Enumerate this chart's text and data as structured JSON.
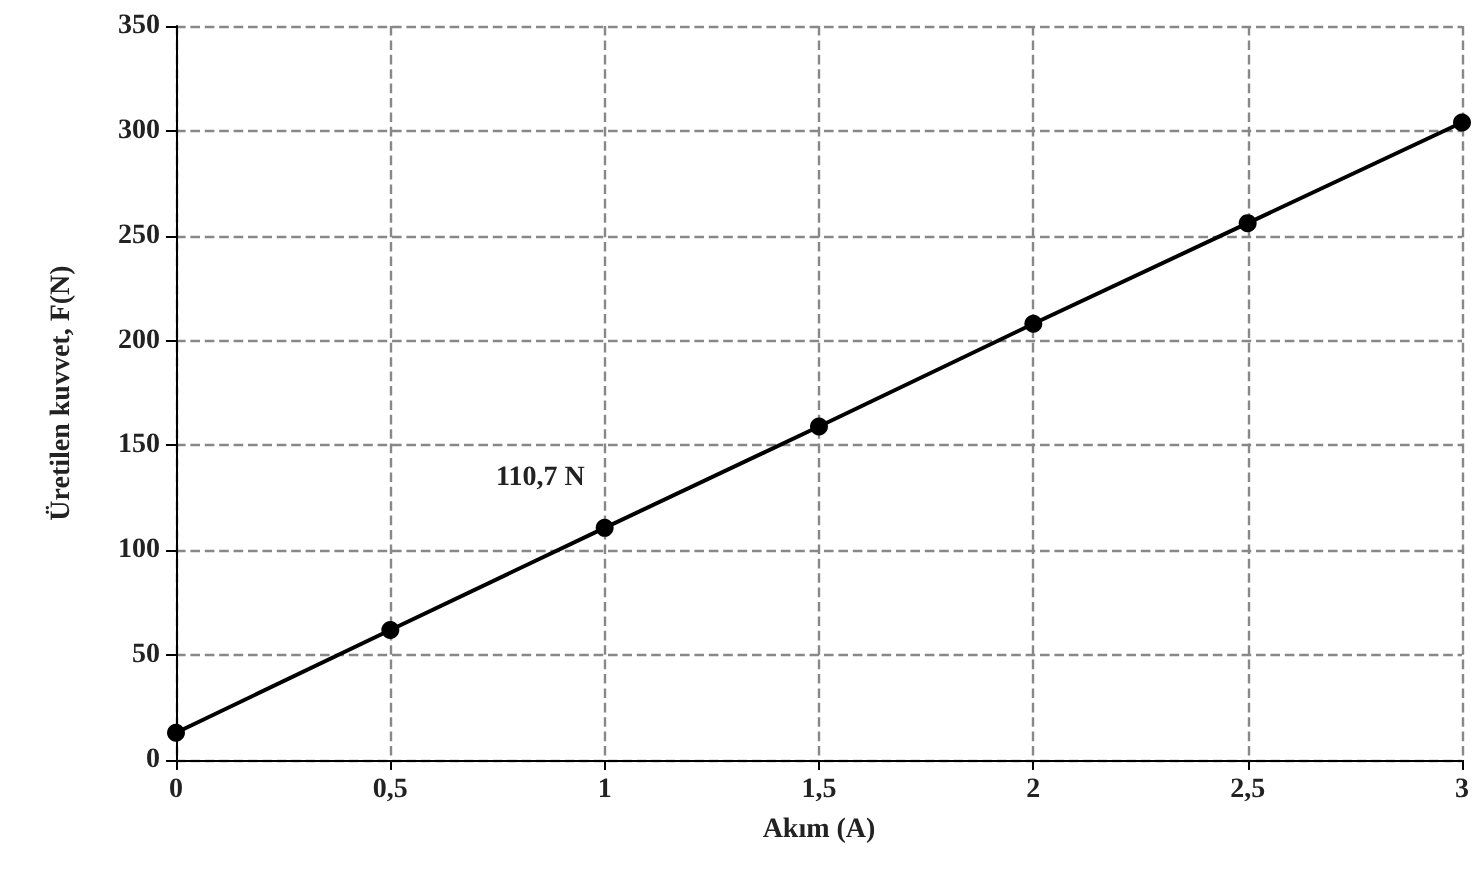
{
  "chart_data": {
    "type": "line",
    "xlabel": "Akım (A)",
    "ylabel": "Üretilen kuvvet, F(N)",
    "x": [
      0,
      0.5,
      1,
      1.5,
      2,
      2.5,
      3
    ],
    "series": [
      {
        "color": "#000000",
        "values": [
          13,
          62,
          110.7,
          159,
          208,
          256,
          304
        ]
      }
    ],
    "xlim": [
      0,
      3
    ],
    "xticks": [
      0,
      {
        "value": 0.5,
        "label": "0,5"
      },
      1,
      {
        "value": 1.5,
        "label": "1,5"
      },
      2,
      {
        "value": 2.5,
        "label": "2,5"
      },
      3
    ],
    "ylim": [
      0,
      350
    ],
    "yticks": [
      0,
      50,
      100,
      150,
      200,
      250,
      300,
      350
    ],
    "annotations": [
      {
        "text": "110,7 N",
        "x": 1,
        "y": 110.7
      }
    ],
    "grid": true,
    "marker": "circle",
    "line_style": "solid"
  }
}
